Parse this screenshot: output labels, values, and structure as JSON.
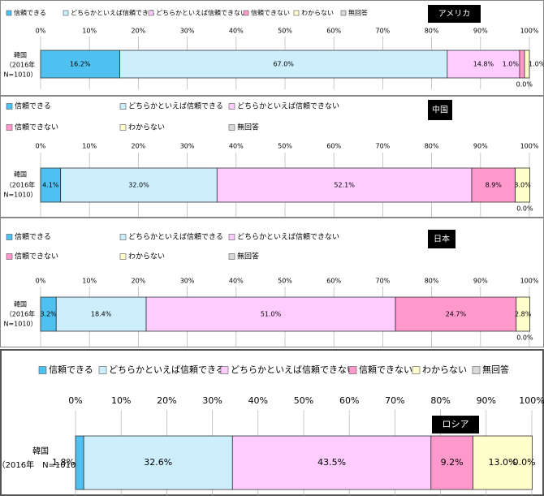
{
  "chart_data": [
    {
      "type": "stacked-bar",
      "title": "アメリカ",
      "category_lines": [
        "韓国",
        "（2016年",
        "N=1010）"
      ],
      "xlim": [
        0,
        100
      ],
      "xticks": [
        {
          "value": 0,
          "label": "0%"
        },
        {
          "value": 10,
          "label": "10%"
        },
        {
          "value": 20,
          "label": "20%"
        },
        {
          "value": 30,
          "label": "30%"
        },
        {
          "value": 40,
          "label": "40%"
        },
        {
          "value": 50,
          "label": "50%"
        },
        {
          "value": 60,
          "label": "60%"
        },
        {
          "value": 70,
          "label": "70%"
        },
        {
          "value": 80,
          "label": "80%"
        },
        {
          "value": 90,
          "label": "90%"
        },
        {
          "value": 100,
          "label": "100%"
        }
      ],
      "series": [
        {
          "name": "信頼できる",
          "color": "#4fc1f0",
          "values": [
            16.2
          ],
          "value_labels": [
            "16.2%"
          ]
        },
        {
          "name": "どちらかといえば信頼できる",
          "color": "#cdeefd",
          "values": [
            67.0
          ],
          "value_labels": [
            "67.0%"
          ]
        },
        {
          "name": "どちらかといえば信頼できない",
          "color": "#ffccff",
          "values": [
            14.8
          ],
          "value_labels": [
            "14.8%"
          ]
        },
        {
          "name": "信頼できない",
          "color": "#ff99cc",
          "values": [
            1.0
          ],
          "value_labels": [
            "1.0%"
          ]
        },
        {
          "name": "わからない",
          "color": "#ffffcc",
          "values": [
            1.0
          ],
          "value_labels": [
            "1.0%"
          ]
        },
        {
          "name": "無回答",
          "color": "#d9d9d9",
          "values": [
            0.0
          ],
          "value_labels": [
            "0.0%"
          ]
        }
      ]
    },
    {
      "type": "stacked-bar",
      "title": "中国",
      "category_lines": [
        "韓国",
        "（2016年",
        "N=1010）"
      ],
      "xlim": [
        0,
        100
      ],
      "xticks": [
        {
          "value": 0,
          "label": "0%"
        },
        {
          "value": 10,
          "label": "10%"
        },
        {
          "value": 20,
          "label": "20%"
        },
        {
          "value": 30,
          "label": "30%"
        },
        {
          "value": 40,
          "label": "40%"
        },
        {
          "value": 50,
          "label": "50%"
        },
        {
          "value": 60,
          "label": "60%"
        },
        {
          "value": 70,
          "label": "70%"
        },
        {
          "value": 80,
          "label": "80%"
        },
        {
          "value": 90,
          "label": "90%"
        },
        {
          "value": 100,
          "label": "100%"
        }
      ],
      "series": [
        {
          "name": "信頼できる",
          "color": "#4fc1f0",
          "values": [
            4.1
          ],
          "value_labels": [
            "4.1%"
          ]
        },
        {
          "name": "どちらかといえば信頼できる",
          "color": "#cdeefd",
          "values": [
            32.0
          ],
          "value_labels": [
            "32.0%"
          ]
        },
        {
          "name": "どちらかといえば信頼できない",
          "color": "#ffccff",
          "values": [
            52.1
          ],
          "value_labels": [
            "52.1%"
          ]
        },
        {
          "name": "信頼できない",
          "color": "#ff99cc",
          "values": [
            8.9
          ],
          "value_labels": [
            "8.9%"
          ]
        },
        {
          "name": "わからない",
          "color": "#ffffcc",
          "values": [
            3.0
          ],
          "value_labels": [
            "3.0%"
          ]
        },
        {
          "name": "無回答",
          "color": "#d9d9d9",
          "values": [
            0.0
          ],
          "value_labels": [
            "0.0%"
          ]
        }
      ]
    },
    {
      "type": "stacked-bar",
      "title": "日本",
      "category_lines": [
        "韓国",
        "（2016年",
        "N=1010）"
      ],
      "xlim": [
        0,
        100
      ],
      "xticks": [
        {
          "value": 0,
          "label": "0%"
        },
        {
          "value": 10,
          "label": "10%"
        },
        {
          "value": 20,
          "label": "20%"
        },
        {
          "value": 30,
          "label": "30%"
        },
        {
          "value": 40,
          "label": "40%"
        },
        {
          "value": 50,
          "label": "50%"
        },
        {
          "value": 60,
          "label": "60%"
        },
        {
          "value": 70,
          "label": "70%"
        },
        {
          "value": 80,
          "label": "80%"
        },
        {
          "value": 90,
          "label": "90%"
        },
        {
          "value": 100,
          "label": "100%"
        }
      ],
      "series": [
        {
          "name": "信頼できる",
          "color": "#4fc1f0",
          "values": [
            3.2
          ],
          "value_labels": [
            "3.2%"
          ]
        },
        {
          "name": "どちらかといえば信頼できる",
          "color": "#cdeefd",
          "values": [
            18.4
          ],
          "value_labels": [
            "18.4%"
          ]
        },
        {
          "name": "どちらかといえば信頼できない",
          "color": "#ffccff",
          "values": [
            51.0
          ],
          "value_labels": [
            "51.0%"
          ]
        },
        {
          "name": "信頼できない",
          "color": "#ff99cc",
          "values": [
            24.7
          ],
          "value_labels": [
            "24.7%"
          ]
        },
        {
          "name": "わからない",
          "color": "#ffffcc",
          "values": [
            2.8
          ],
          "value_labels": [
            "2.8%"
          ]
        },
        {
          "name": "無回答",
          "color": "#d9d9d9",
          "values": [
            0.0
          ],
          "value_labels": [
            "0.0%"
          ]
        }
      ]
    },
    {
      "type": "stacked-bar",
      "title": "ロシア",
      "category_lines": [
        "韓国",
        "（2016年　N=1010）"
      ],
      "xlim": [
        0,
        100
      ],
      "xticks": [
        {
          "value": 0,
          "label": "0%"
        },
        {
          "value": 10,
          "label": "10%"
        },
        {
          "value": 20,
          "label": "20%"
        },
        {
          "value": 30,
          "label": "30%"
        },
        {
          "value": 40,
          "label": "40%"
        },
        {
          "value": 50,
          "label": "50%"
        },
        {
          "value": 60,
          "label": "60%"
        },
        {
          "value": 70,
          "label": "70%"
        },
        {
          "value": 80,
          "label": "80%"
        },
        {
          "value": 90,
          "label": "90%"
        },
        {
          "value": 100,
          "label": "100%"
        }
      ],
      "series": [
        {
          "name": "信頼できる",
          "color": "#4fc1f0",
          "values": [
            1.8
          ],
          "value_labels": [
            "1.8%"
          ]
        },
        {
          "name": "どちらかといえば信頼できる",
          "color": "#cdeefd",
          "values": [
            32.6
          ],
          "value_labels": [
            "32.6%"
          ]
        },
        {
          "name": "どちらかといえば信頼できない",
          "color": "#ffccff",
          "values": [
            43.5
          ],
          "value_labels": [
            "43.5%"
          ]
        },
        {
          "name": "信頼できない",
          "color": "#ff99cc",
          "values": [
            9.2
          ],
          "value_labels": [
            "9.2%"
          ]
        },
        {
          "name": "わからない",
          "color": "#ffffcc",
          "values": [
            13.0
          ],
          "value_labels": [
            "13.0%"
          ]
        },
        {
          "name": "無回答",
          "color": "#d9d9d9",
          "values": [
            0.0
          ],
          "value_labels": [
            "0.0%"
          ]
        }
      ]
    }
  ]
}
